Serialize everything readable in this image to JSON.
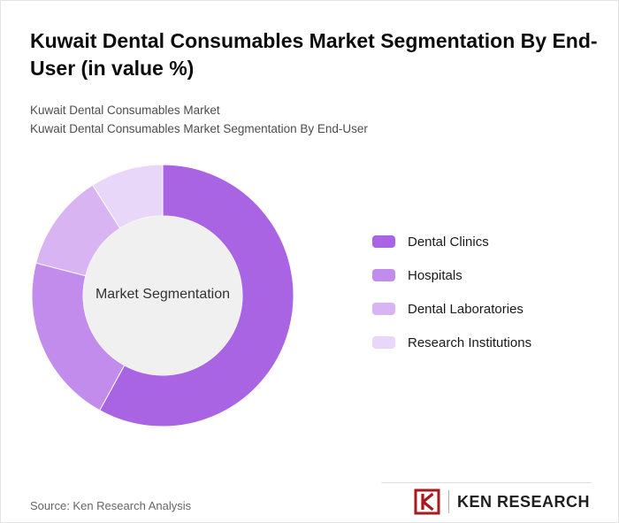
{
  "header": {
    "title": "Kuwait Dental Consumables Market Segmentation By End-User (in value %)",
    "subtitles": [
      "Kuwait Dental Consumables Market",
      "Kuwait Dental Consumables Market Segmentation By End-User"
    ]
  },
  "chart_data": {
    "type": "pie",
    "variant": "donut",
    "title": "Kuwait Dental Consumables Market Segmentation By End-User (in value %)",
    "center_label": "Market Segmentation",
    "categories": [
      "Dental Clinics",
      "Hospitals",
      "Dental Laboratories",
      "Research Institutions"
    ],
    "values": [
      58,
      21,
      12,
      9
    ],
    "colors": [
      "#a964e3",
      "#c18ceb",
      "#d9b4f3",
      "#e9d7f9"
    ],
    "center_fill": "#f0f0f0",
    "legend_position": "right",
    "start_angle_deg": 0
  },
  "footer": {
    "source": "Source: Ken Research Analysis",
    "brand_name": "KEN RESEARCH",
    "brand_color": "#a6191e"
  }
}
